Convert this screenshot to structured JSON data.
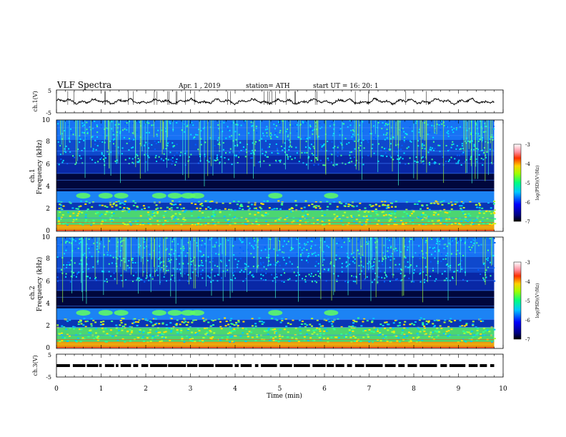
{
  "header": {
    "title": "VLF  Spectra",
    "date": "Apr. 1  , 2019",
    "station": "station= ATH",
    "start_ut": "start  UT  =    16: 20: 1"
  },
  "chart_data": [
    {
      "type": "line",
      "name": "ch1-waveform",
      "ylabel": "ch.1(V)",
      "ylim": [
        -5,
        5
      ],
      "yticks": [
        "5",
        "-5"
      ],
      "xlim": [
        0,
        10
      ],
      "description_level": 0
    },
    {
      "type": "heatmap",
      "name": "ch1-spectrogram",
      "ylabel": "ch.1\nFrequency  (kHz)",
      "ylabel_lines": [
        "ch.1",
        "Frequency  (kHz)"
      ],
      "ylim": [
        0,
        10
      ],
      "yticks": [
        "0",
        "2",
        "4",
        "6",
        "8",
        "10"
      ],
      "xlim": [
        0,
        10
      ],
      "data_end_min": 9.8,
      "colorbar": {
        "label": "log(PSD)(V²/Hz)",
        "range": [
          -7,
          -3
        ],
        "ticks": [
          "-3",
          "-4",
          "-5",
          "-6",
          "-7"
        ]
      }
    },
    {
      "type": "heatmap",
      "name": "ch2-spectrogram",
      "ylabel": "ch.2\nFrequency  (kHz)",
      "ylabel_lines": [
        "ch.2",
        "Frequency  (kHz)"
      ],
      "ylim": [
        0,
        10
      ],
      "yticks": [
        "0",
        "2",
        "4",
        "6",
        "8",
        "10"
      ],
      "xlim": [
        0,
        10
      ],
      "data_end_min": 9.8,
      "colorbar": {
        "label": "log(PSD)(V²/Hz)",
        "range": [
          -7,
          -3
        ],
        "ticks": [
          "-3",
          "-4",
          "-5",
          "-6",
          "-7"
        ]
      }
    },
    {
      "type": "line",
      "name": "ch3-timing",
      "ylabel": "ch.3(V)",
      "ylim": [
        -5,
        5
      ],
      "yticks": [
        "5",
        "-5"
      ],
      "xlim": [
        0,
        10
      ],
      "xlabel": "Time  (min)",
      "xticks": [
        "0",
        "1",
        "2",
        "3",
        "4",
        "5",
        "6",
        "7",
        "8",
        "9",
        "10"
      ],
      "level": 0
    }
  ]
}
